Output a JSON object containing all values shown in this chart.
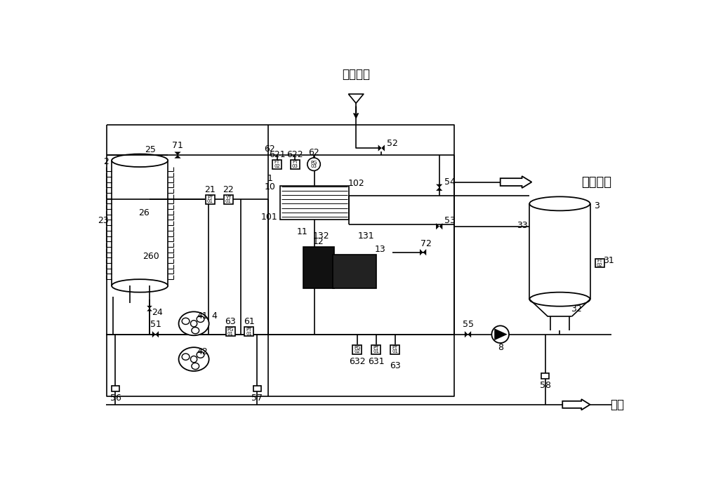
{
  "bg_color": "#ffffff",
  "line_color": "#000000",
  "fig_width": 10,
  "fig_height": 7,
  "label_wai_qi": "外界气源",
  "label_hou_xu": "后续工艺",
  "label_pai_wu": "排污"
}
